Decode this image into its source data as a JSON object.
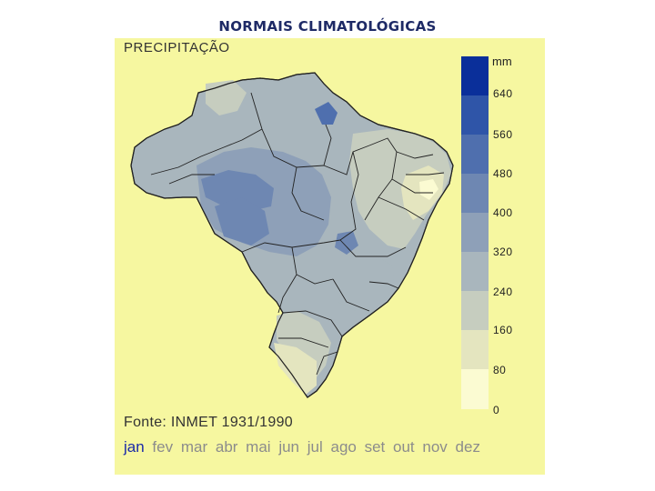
{
  "page_title": "NORMAIS CLIMATOLÓGICAS",
  "map": {
    "heading": "PRECIPITAÇÃO",
    "unit": "mm",
    "source": "Fonte: INMET 1931/1990"
  },
  "legend": {
    "labels": [
      "640",
      "560",
      "480",
      "400",
      "320",
      "240",
      "160",
      "80",
      "0"
    ],
    "colors": [
      "#0a2f9a",
      "#2f55a8",
      "#4f6fae",
      "#6e87b2",
      "#8ea0b8",
      "#a9b6bd",
      "#c6cdbf",
      "#e4e5bf",
      "#fbfbd2"
    ]
  },
  "months": {
    "items": [
      "jan",
      "fev",
      "mar",
      "abr",
      "mai",
      "jun",
      "jul",
      "ago",
      "set",
      "out",
      "nov",
      "dez"
    ],
    "selected": "jan"
  },
  "colors": {
    "title": "#1e2a66",
    "panel_bg": "#f6f7a0",
    "active_month": "#1a2aa8",
    "inactive_month": "#8c8c8c"
  }
}
